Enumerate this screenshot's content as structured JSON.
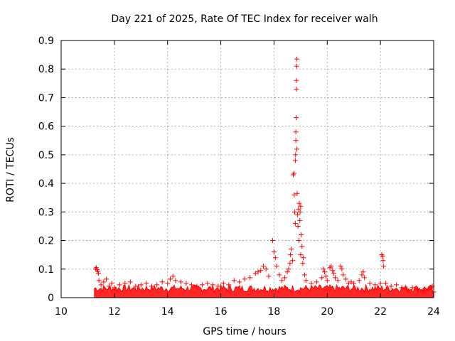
{
  "chart_data": {
    "type": "scatter",
    "title": "Day 221 of 2025, Rate Of TEC Index for receiver walh",
    "xlabel": "GPS time / hours",
    "ylabel": "ROTI / TECUs",
    "xlim": [
      10,
      24
    ],
    "ylim": [
      0,
      0.9
    ],
    "xticks": [
      "10",
      "12",
      "14",
      "16",
      "18",
      "20",
      "22",
      "24"
    ],
    "yticks": [
      "0",
      "0.1",
      "0.2",
      "0.3",
      "0.4",
      "0.5",
      "0.6",
      "0.7",
      "0.8",
      "0.9"
    ],
    "grid": true,
    "marker": "+",
    "color": "#ff0000",
    "series": [
      {
        "points": [
          [
            11.3,
            0.1
          ],
          [
            11.32,
            0.105
          ],
          [
            11.35,
            0.098
          ],
          [
            11.38,
            0.092
          ],
          [
            11.4,
            0.085
          ],
          [
            11.42,
            0.06
          ],
          [
            11.5,
            0.045
          ],
          [
            11.6,
            0.055
          ],
          [
            11.7,
            0.065
          ],
          [
            11.8,
            0.04
          ],
          [
            11.9,
            0.05
          ],
          [
            12.0,
            0.035
          ],
          [
            12.2,
            0.045
          ],
          [
            12.4,
            0.05
          ],
          [
            12.6,
            0.055
          ],
          [
            12.8,
            0.04
          ],
          [
            13.0,
            0.045
          ],
          [
            13.2,
            0.05
          ],
          [
            13.4,
            0.04
          ],
          [
            13.6,
            0.045
          ],
          [
            13.8,
            0.055
          ],
          [
            14.0,
            0.05
          ],
          [
            14.1,
            0.065
          ],
          [
            14.2,
            0.075
          ],
          [
            14.3,
            0.06
          ],
          [
            14.5,
            0.055
          ],
          [
            14.7,
            0.05
          ],
          [
            14.9,
            0.045
          ],
          [
            15.1,
            0.04
          ],
          [
            15.3,
            0.045
          ],
          [
            15.5,
            0.05
          ],
          [
            15.7,
            0.045
          ],
          [
            15.9,
            0.04
          ],
          [
            16.1,
            0.05
          ],
          [
            16.3,
            0.045
          ],
          [
            16.5,
            0.06
          ],
          [
            16.7,
            0.055
          ],
          [
            16.9,
            0.065
          ],
          [
            17.1,
            0.07
          ],
          [
            17.3,
            0.085
          ],
          [
            17.4,
            0.09
          ],
          [
            17.5,
            0.095
          ],
          [
            17.6,
            0.11
          ],
          [
            17.7,
            0.1
          ],
          [
            17.8,
            0.075
          ],
          [
            17.95,
            0.2
          ],
          [
            18.0,
            0.16
          ],
          [
            18.05,
            0.14
          ],
          [
            18.1,
            0.11
          ],
          [
            18.2,
            0.08
          ],
          [
            18.3,
            0.06
          ],
          [
            18.4,
            0.07
          ],
          [
            18.5,
            0.09
          ],
          [
            18.55,
            0.1
          ],
          [
            18.6,
            0.12
          ],
          [
            18.62,
            0.15
          ],
          [
            18.65,
            0.17
          ],
          [
            18.7,
            0.13
          ],
          [
            18.72,
            0.43
          ],
          [
            18.75,
            0.435
          ],
          [
            18.76,
            0.36
          ],
          [
            18.78,
            0.3
          ],
          [
            18.8,
            0.26
          ],
          [
            18.8,
            0.48
          ],
          [
            18.81,
            0.5
          ],
          [
            18.82,
            0.55
          ],
          [
            18.82,
            0.58
          ],
          [
            18.83,
            0.63
          ],
          [
            18.84,
            0.73
          ],
          [
            18.84,
            0.76
          ],
          [
            18.85,
            0.81
          ],
          [
            18.86,
            0.835
          ],
          [
            18.86,
            0.52
          ],
          [
            18.87,
            0.365
          ],
          [
            18.88,
            0.29
          ],
          [
            18.9,
            0.25
          ],
          [
            18.92,
            0.31
          ],
          [
            18.94,
            0.2
          ],
          [
            18.95,
            0.33
          ],
          [
            18.97,
            0.27
          ],
          [
            18.98,
            0.3
          ],
          [
            19.0,
            0.32
          ],
          [
            19.0,
            0.15
          ],
          [
            19.02,
            0.22
          ],
          [
            19.05,
            0.18
          ],
          [
            19.08,
            0.12
          ],
          [
            19.1,
            0.14
          ],
          [
            19.15,
            0.08
          ],
          [
            19.2,
            0.06
          ],
          [
            19.4,
            0.05
          ],
          [
            19.6,
            0.055
          ],
          [
            19.8,
            0.07
          ],
          [
            19.85,
            0.1
          ],
          [
            19.9,
            0.09
          ],
          [
            19.95,
            0.075
          ],
          [
            20.0,
            0.06
          ],
          [
            20.1,
            0.105
          ],
          [
            20.15,
            0.11
          ],
          [
            20.2,
            0.095
          ],
          [
            20.25,
            0.085
          ],
          [
            20.3,
            0.07
          ],
          [
            20.4,
            0.06
          ],
          [
            20.5,
            0.11
          ],
          [
            20.55,
            0.1
          ],
          [
            20.6,
            0.08
          ],
          [
            20.7,
            0.065
          ],
          [
            20.8,
            0.05
          ],
          [
            20.9,
            0.055
          ],
          [
            21.0,
            0.05
          ],
          [
            21.2,
            0.06
          ],
          [
            21.3,
            0.08
          ],
          [
            21.35,
            0.09
          ],
          [
            21.4,
            0.07
          ],
          [
            21.6,
            0.05
          ],
          [
            21.8,
            0.045
          ],
          [
            22.0,
            0.05
          ],
          [
            22.05,
            0.15
          ],
          [
            22.08,
            0.145
          ],
          [
            22.1,
            0.13
          ],
          [
            22.12,
            0.11
          ],
          [
            22.2,
            0.05
          ],
          [
            22.4,
            0.04
          ],
          [
            22.6,
            0.045
          ],
          [
            22.8,
            0.035
          ],
          [
            23.0,
            0.03
          ],
          [
            23.2,
            0.035
          ],
          [
            23.4,
            0.03
          ],
          [
            23.6,
            0.025
          ],
          [
            23.8,
            0.03
          ],
          [
            23.9,
            0.035
          ],
          [
            23.95,
            0.04
          ],
          [
            24.0,
            0.02
          ]
        ]
      }
    ]
  }
}
